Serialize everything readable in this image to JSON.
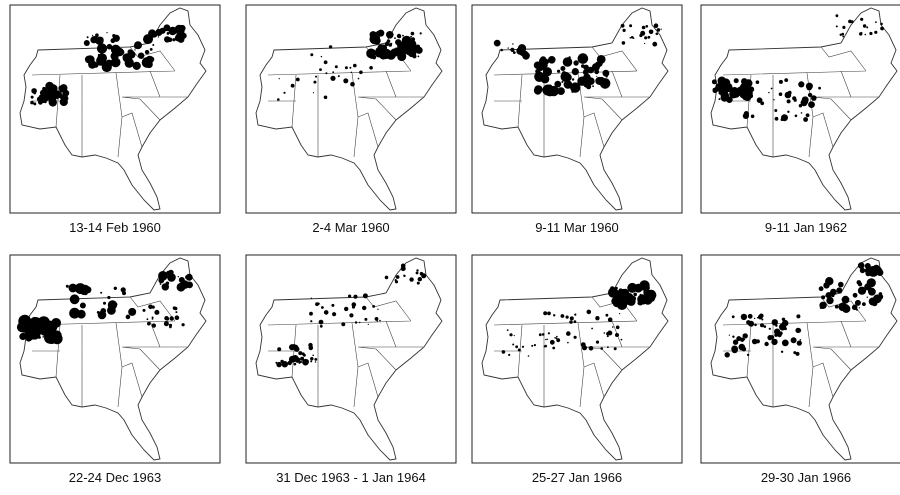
{
  "panels": [
    {
      "caption": "13-14 Feb 1960"
    },
    {
      "caption": "2-4 Mar 1960"
    },
    {
      "caption": "9-11 Mar 1960"
    },
    {
      "caption": "9-11 Jan 1962"
    },
    {
      "caption": "22-24 Dec 1963"
    },
    {
      "caption": "31 Dec 1963 - 1 Jan 1964"
    },
    {
      "caption": "25-27 Jan 1966"
    },
    {
      "caption": "29-30 Jan 1966"
    }
  ]
}
